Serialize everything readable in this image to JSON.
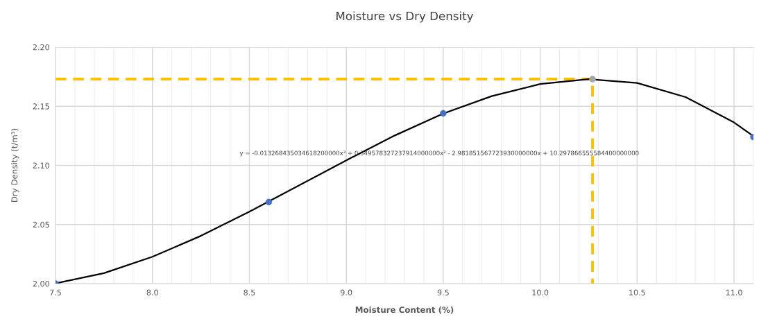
{
  "chart_data": {
    "type": "scatter",
    "title": "Moisture vs Dry Density",
    "xlabel": "Moisture Content (%)",
    "ylabel": "Dry Density (t/m³)",
    "xlim": [
      7.5,
      11.1
    ],
    "xticks": [
      {
        "value": 7.5,
        "label": "7.5"
      },
      {
        "value": 8.0,
        "label": "8.0"
      },
      {
        "value": 8.5,
        "label": "8.5"
      },
      {
        "value": 9.0,
        "label": "9.0"
      },
      {
        "value": 9.5,
        "label": "9.5"
      },
      {
        "value": 10.0,
        "label": "10.0"
      },
      {
        "value": 10.5,
        "label": "10.5"
      },
      {
        "value": 11.0,
        "label": "11.0"
      }
    ],
    "ylim": [
      2.0,
      2.2
    ],
    "yticks": [
      {
        "value": 2.0,
        "label": "2.00"
      },
      {
        "value": 2.05,
        "label": "2.05"
      },
      {
        "value": 2.1,
        "label": "2.10"
      },
      {
        "value": 2.15,
        "label": "2.15"
      },
      {
        "value": 2.2,
        "label": "2.20"
      }
    ],
    "grid": true,
    "legend": false,
    "series": [
      {
        "type": "line",
        "color": "#ffc000",
        "line_style": "dashed",
        "marker": "none",
        "x": [
          7.5,
          10.27,
          10.27
        ],
        "values": [
          2.173,
          2.173,
          2.0
        ]
      },
      {
        "type": "line",
        "color": "#000000",
        "line_style": "solid",
        "marker": "none",
        "x": [
          7.5,
          7.75,
          8.0,
          8.25,
          8.5,
          8.75,
          9.0,
          9.25,
          9.5,
          9.75,
          10.0,
          10.25,
          10.5,
          10.75,
          11.0,
          11.1
        ],
        "values": [
          2.0002,
          2.0089,
          2.0227,
          2.0404,
          2.0608,
          2.0825,
          2.1043,
          2.1253,
          2.1438,
          2.1586,
          2.1688,
          2.1729,
          2.1697,
          2.1578,
          2.1363,
          2.1247
        ]
      },
      {
        "color": "#4472c4",
        "marker": "circle",
        "x": [
          7.5,
          8.6,
          9.5,
          11.1
        ],
        "values": [
          2.0,
          2.069,
          2.144,
          2.124
        ]
      },
      {
        "color": "#a5a5a5",
        "marker": "circle",
        "x": [
          10.27
        ],
        "values": [
          2.173
        ]
      }
    ],
    "annotations": [
      "y = -0.013268435034618200000x³ + 0.349578327237914000000x² - 2.981851567723930000000x + 10.297866555584400000000"
    ]
  }
}
